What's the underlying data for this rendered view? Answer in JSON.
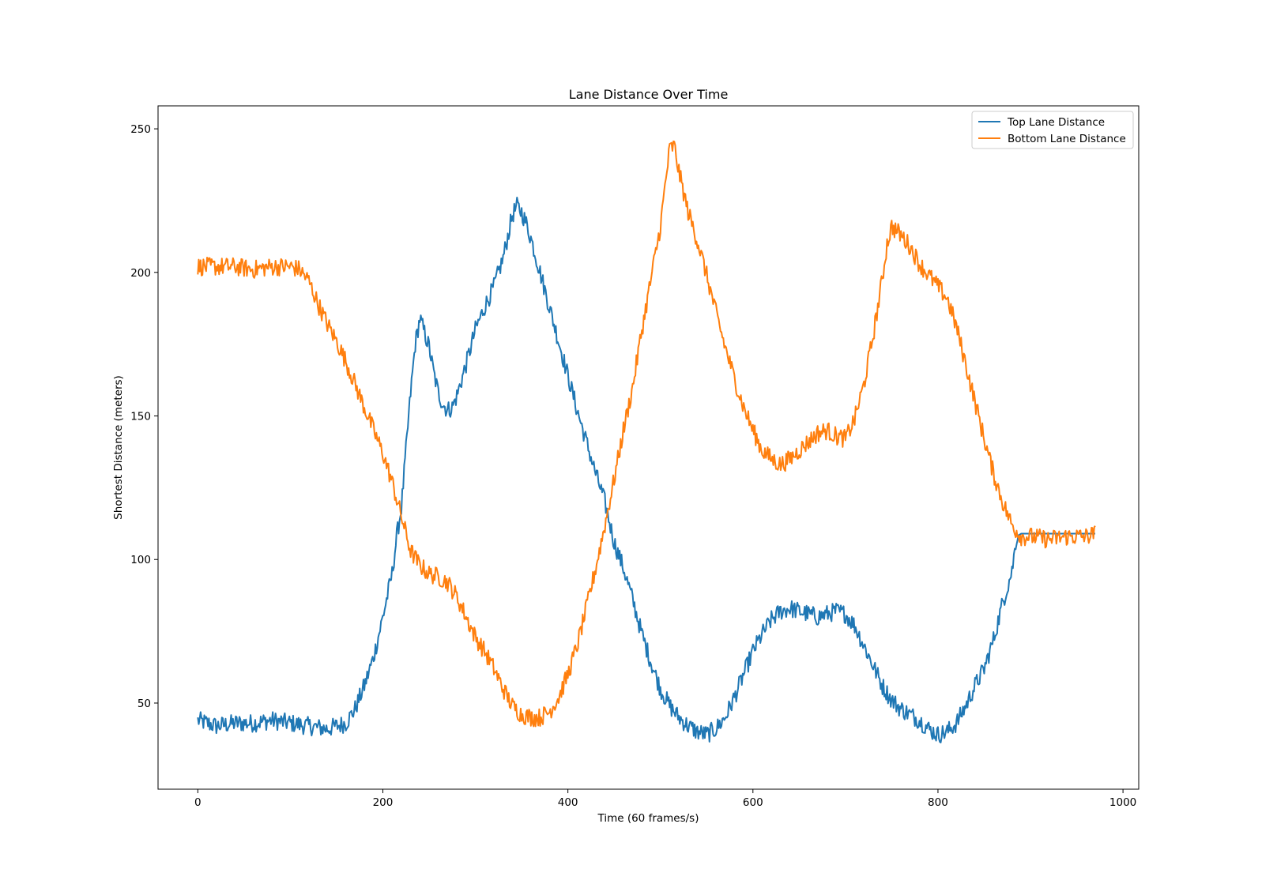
{
  "chart_data": {
    "type": "line",
    "title": "Lane Distance Over Time",
    "xlabel": "Time (60 frames/s)",
    "ylabel": "Shortest Distance (meters)",
    "xlim": [
      -43,
      1017
    ],
    "ylim": [
      20,
      258
    ],
    "xticks": [
      0,
      200,
      400,
      600,
      800,
      1000
    ],
    "yticks": [
      50,
      100,
      150,
      200,
      250
    ],
    "grid": false,
    "legend_position": "top-right",
    "series": [
      {
        "name": "Top Lane Distance",
        "color": "#1f77b4",
        "x": [
          0,
          20,
          40,
          60,
          80,
          100,
          120,
          140,
          160,
          170,
          180,
          190,
          200,
          210,
          215,
          220,
          225,
          230,
          235,
          240,
          245,
          250,
          255,
          260,
          265,
          270,
          275,
          280,
          290,
          300,
          310,
          320,
          330,
          340,
          345,
          350,
          355,
          360,
          370,
          380,
          390,
          400,
          410,
          420,
          430,
          440,
          450,
          460,
          470,
          480,
          490,
          500,
          510,
          520,
          530,
          540,
          550,
          560,
          570,
          580,
          590,
          600,
          610,
          620,
          630,
          640,
          650,
          660,
          670,
          680,
          690,
          700,
          710,
          720,
          730,
          740,
          750,
          760,
          770,
          780,
          790,
          800,
          810,
          820,
          830,
          840,
          850,
          860,
          870,
          880,
          885,
          890,
          900,
          920,
          940,
          960,
          970
        ],
        "y": [
          44,
          42,
          43,
          43,
          44,
          43,
          42,
          41,
          43,
          48,
          56,
          66,
          80,
          95,
          108,
          118,
          138,
          158,
          175,
          184,
          179,
          174,
          165,
          158,
          154,
          152,
          153,
          157,
          168,
          180,
          188,
          195,
          205,
          220,
          223,
          221,
          217,
          212,
          200,
          188,
          176,
          164,
          152,
          141,
          130,
          120,
          106,
          97,
          86,
          74,
          64,
          55,
          49,
          45,
          42,
          40,
          39,
          41,
          45,
          52,
          60,
          68,
          74,
          79,
          82,
          83,
          82,
          81,
          80,
          81,
          82,
          81,
          77,
          70,
          63,
          56,
          51,
          48,
          46,
          44,
          41,
          39,
          40,
          43,
          49,
          56,
          62,
          72,
          85,
          96,
          108,
          109,
          109,
          109,
          109,
          109,
          109
        ]
      },
      {
        "name": "Bottom Lane Distance",
        "color": "#ff7f0e",
        "x": [
          0,
          20,
          40,
          60,
          80,
          100,
          110,
          120,
          130,
          140,
          150,
          160,
          170,
          180,
          190,
          200,
          210,
          220,
          230,
          240,
          250,
          260,
          270,
          280,
          290,
          300,
          310,
          320,
          330,
          340,
          350,
          360,
          370,
          380,
          390,
          400,
          410,
          420,
          430,
          440,
          450,
          460,
          470,
          480,
          490,
          500,
          505,
          510,
          515,
          520,
          530,
          540,
          550,
          560,
          570,
          580,
          590,
          600,
          610,
          620,
          630,
          640,
          650,
          660,
          670,
          680,
          690,
          700,
          710,
          720,
          730,
          740,
          745,
          750,
          760,
          770,
          780,
          790,
          800,
          810,
          820,
          830,
          840,
          850,
          860,
          870,
          880,
          890,
          900,
          920,
          940,
          960,
          970
        ],
        "y": [
          202,
          202,
          202,
          201,
          202,
          202,
          201,
          197,
          189,
          182,
          176,
          169,
          161,
          153,
          145,
          137,
          127,
          115,
          103,
          98,
          95,
          94,
          92,
          87,
          80,
          73,
          68,
          62,
          55,
          49,
          46,
          45,
          45,
          47,
          52,
          60,
          70,
          83,
          97,
          112,
          128,
          145,
          160,
          180,
          198,
          216,
          230,
          243,
          244,
          235,
          221,
          211,
          199,
          186,
          174,
          163,
          153,
          145,
          138,
          135,
          133,
          135,
          138,
          141,
          144,
          145,
          143,
          142,
          149,
          161,
          178,
          198,
          210,
          216,
          213,
          209,
          203,
          199,
          195,
          191,
          181,
          168,
          155,
          142,
          130,
          120,
          112,
          108,
          108,
          107,
          108,
          108,
          109
        ]
      }
    ]
  }
}
